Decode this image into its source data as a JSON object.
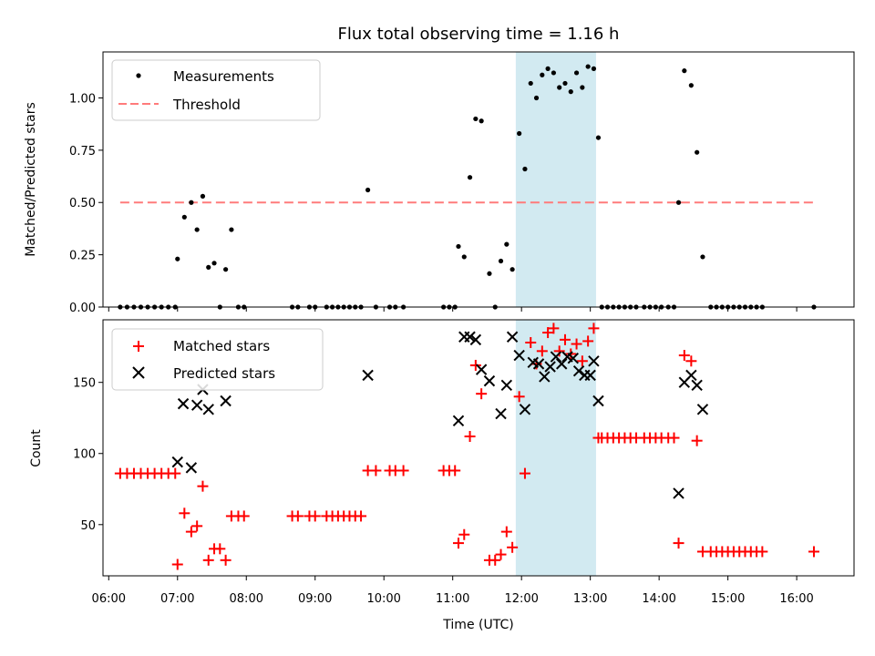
{
  "chart_data": {
    "title": "Flux total observing time = 1.16 h",
    "xlabel": "Time (UTC)",
    "x_ticks": [
      "06:00",
      "07:00",
      "08:00",
      "09:00",
      "10:00",
      "11:00",
      "12:00",
      "13:00",
      "14:00",
      "15:00",
      "16:00"
    ],
    "x_range": [
      "05:55",
      "16:50"
    ],
    "shaded_region": {
      "start": "11:55",
      "end": "13:05",
      "color": "#add8e6"
    },
    "top": {
      "type": "scatter",
      "ylabel": "Matched/Predicted stars",
      "ylim": [
        0,
        1.22
      ],
      "y_ticks": [
        "0.00",
        "0.25",
        "0.50",
        "0.75",
        "1.00"
      ],
      "legend": {
        "placement": "top-left",
        "measurements": "Measurements",
        "threshold": "Threshold"
      },
      "threshold": {
        "value": 0.5,
        "x_start": "06:10",
        "x_end": "16:15",
        "color": "#ff7b7b"
      },
      "measurements": [
        [
          "06:10",
          0
        ],
        [
          "06:16",
          0
        ],
        [
          "06:22",
          0
        ],
        [
          "06:28",
          0
        ],
        [
          "06:34",
          0
        ],
        [
          "06:40",
          0
        ],
        [
          "06:46",
          0
        ],
        [
          "06:52",
          0
        ],
        [
          "06:58",
          0
        ],
        [
          "07:00",
          0.23
        ],
        [
          "07:06",
          0.43
        ],
        [
          "07:12",
          0.5
        ],
        [
          "07:17",
          0.37
        ],
        [
          "07:22",
          0.53
        ],
        [
          "07:27",
          0.19
        ],
        [
          "07:32",
          0.21
        ],
        [
          "07:37",
          0
        ],
        [
          "07:42",
          0.18
        ],
        [
          "07:47",
          0.37
        ],
        [
          "07:53",
          0
        ],
        [
          "07:58",
          0
        ],
        [
          "08:40",
          0
        ],
        [
          "08:45",
          0
        ],
        [
          "08:55",
          0
        ],
        [
          "09:00",
          0
        ],
        [
          "09:10",
          0
        ],
        [
          "09:15",
          0
        ],
        [
          "09:20",
          0
        ],
        [
          "09:25",
          0
        ],
        [
          "09:30",
          0
        ],
        [
          "09:35",
          0
        ],
        [
          "09:40",
          0
        ],
        [
          "09:46",
          0.56
        ],
        [
          "09:53",
          0
        ],
        [
          "10:05",
          0
        ],
        [
          "10:10",
          0
        ],
        [
          "10:17",
          0
        ],
        [
          "10:52",
          0
        ],
        [
          "10:57",
          0
        ],
        [
          "11:02",
          0
        ],
        [
          "11:05",
          0.29
        ],
        [
          "11:10",
          0.24
        ],
        [
          "11:15",
          0.62
        ],
        [
          "11:20",
          0.9
        ],
        [
          "11:25",
          0.89
        ],
        [
          "11:32",
          0.16
        ],
        [
          "11:37",
          0
        ],
        [
          "11:42",
          0.22
        ],
        [
          "11:47",
          0.3
        ],
        [
          "11:52",
          0.18
        ],
        [
          "11:58",
          0.83
        ],
        [
          "12:03",
          0.66
        ],
        [
          "12:08",
          1.07
        ],
        [
          "12:13",
          1.0
        ],
        [
          "12:18",
          1.11
        ],
        [
          "12:23",
          1.14
        ],
        [
          "12:28",
          1.12
        ],
        [
          "12:33",
          1.05
        ],
        [
          "12:38",
          1.07
        ],
        [
          "12:43",
          1.03
        ],
        [
          "12:48",
          1.12
        ],
        [
          "12:53",
          1.05
        ],
        [
          "12:58",
          1.15
        ],
        [
          "13:03",
          1.14
        ],
        [
          "13:07",
          0.81
        ],
        [
          "13:10",
          0
        ],
        [
          "13:15",
          0
        ],
        [
          "13:20",
          0
        ],
        [
          "13:25",
          0
        ],
        [
          "13:30",
          0
        ],
        [
          "13:35",
          0
        ],
        [
          "13:40",
          0
        ],
        [
          "13:47",
          0
        ],
        [
          "13:52",
          0
        ],
        [
          "13:57",
          0
        ],
        [
          "14:02",
          0
        ],
        [
          "14:08",
          0
        ],
        [
          "14:13",
          0
        ],
        [
          "14:17",
          0.5
        ],
        [
          "14:22",
          1.13
        ],
        [
          "14:28",
          1.06
        ],
        [
          "14:33",
          0.74
        ],
        [
          "14:38",
          0.24
        ],
        [
          "14:45",
          0
        ],
        [
          "14:50",
          0
        ],
        [
          "14:55",
          0
        ],
        [
          "15:00",
          0
        ],
        [
          "15:05",
          0
        ],
        [
          "15:10",
          0
        ],
        [
          "15:15",
          0
        ],
        [
          "15:20",
          0
        ],
        [
          "15:25",
          0
        ],
        [
          "15:30",
          0
        ],
        [
          "16:15",
          0
        ]
      ]
    },
    "bottom": {
      "type": "scatter",
      "ylabel": "Count",
      "ylim": [
        14,
        194
      ],
      "y_ticks": [
        "50",
        "100",
        "150"
      ],
      "legend": {
        "placement": "top-left",
        "matched": "Matched stars",
        "predicted": "Predicted stars"
      },
      "matched": [
        [
          "06:10",
          86
        ],
        [
          "06:16",
          86
        ],
        [
          "06:22",
          86
        ],
        [
          "06:28",
          86
        ],
        [
          "06:34",
          86
        ],
        [
          "06:40",
          86
        ],
        [
          "06:46",
          86
        ],
        [
          "06:52",
          86
        ],
        [
          "06:58",
          86
        ],
        [
          "07:00",
          22
        ],
        [
          "07:06",
          58
        ],
        [
          "07:12",
          45
        ],
        [
          "07:17",
          49
        ],
        [
          "07:22",
          77
        ],
        [
          "07:27",
          25
        ],
        [
          "07:32",
          33
        ],
        [
          "07:37",
          33
        ],
        [
          "07:42",
          25
        ],
        [
          "07:47",
          56
        ],
        [
          "07:53",
          56
        ],
        [
          "07:58",
          56
        ],
        [
          "08:40",
          56
        ],
        [
          "08:45",
          56
        ],
        [
          "08:55",
          56
        ],
        [
          "09:00",
          56
        ],
        [
          "09:10",
          56
        ],
        [
          "09:15",
          56
        ],
        [
          "09:20",
          56
        ],
        [
          "09:25",
          56
        ],
        [
          "09:30",
          56
        ],
        [
          "09:35",
          56
        ],
        [
          "09:40",
          56
        ],
        [
          "09:46",
          88
        ],
        [
          "09:53",
          88
        ],
        [
          "10:05",
          88
        ],
        [
          "10:10",
          88
        ],
        [
          "10:17",
          88
        ],
        [
          "10:52",
          88
        ],
        [
          "10:57",
          88
        ],
        [
          "11:02",
          88
        ],
        [
          "11:05",
          37
        ],
        [
          "11:10",
          43
        ],
        [
          "11:15",
          112
        ],
        [
          "11:20",
          162
        ],
        [
          "11:25",
          142
        ],
        [
          "11:32",
          25
        ],
        [
          "11:37",
          25
        ],
        [
          "11:42",
          29
        ],
        [
          "11:47",
          45
        ],
        [
          "11:52",
          34
        ],
        [
          "11:58",
          140
        ],
        [
          "12:03",
          86
        ],
        [
          "12:08",
          178
        ],
        [
          "12:13",
          163
        ],
        [
          "12:18",
          172
        ],
        [
          "12:23",
          185
        ],
        [
          "12:28",
          188
        ],
        [
          "12:33",
          172
        ],
        [
          "12:38",
          180
        ],
        [
          "12:43",
          170
        ],
        [
          "12:48",
          177
        ],
        [
          "12:53",
          165
        ],
        [
          "12:58",
          179
        ],
        [
          "13:03",
          188
        ],
        [
          "13:07",
          111
        ],
        [
          "13:10",
          111
        ],
        [
          "13:15",
          111
        ],
        [
          "13:20",
          111
        ],
        [
          "13:25",
          111
        ],
        [
          "13:30",
          111
        ],
        [
          "13:35",
          111
        ],
        [
          "13:40",
          111
        ],
        [
          "13:47",
          111
        ],
        [
          "13:52",
          111
        ],
        [
          "13:57",
          111
        ],
        [
          "14:02",
          111
        ],
        [
          "14:08",
          111
        ],
        [
          "14:13",
          111
        ],
        [
          "14:17",
          37
        ],
        [
          "14:22",
          169
        ],
        [
          "14:28",
          165
        ],
        [
          "14:33",
          109
        ],
        [
          "14:38",
          31
        ],
        [
          "14:45",
          31
        ],
        [
          "14:50",
          31
        ],
        [
          "14:55",
          31
        ],
        [
          "15:00",
          31
        ],
        [
          "15:05",
          31
        ],
        [
          "15:10",
          31
        ],
        [
          "15:15",
          31
        ],
        [
          "15:20",
          31
        ],
        [
          "15:25",
          31
        ],
        [
          "15:30",
          31
        ],
        [
          "16:15",
          31
        ]
      ],
      "predicted": [
        [
          "07:00",
          94
        ],
        [
          "07:05",
          135
        ],
        [
          "07:12",
          90
        ],
        [
          "07:17",
          134
        ],
        [
          "07:22",
          145
        ],
        [
          "07:27",
          131
        ],
        [
          "07:42",
          137
        ],
        [
          "09:46",
          155
        ],
        [
          "11:05",
          123
        ],
        [
          "11:10",
          182
        ],
        [
          "11:15",
          182
        ],
        [
          "11:20",
          180
        ],
        [
          "11:25",
          159
        ],
        [
          "11:32",
          151
        ],
        [
          "11:42",
          128
        ],
        [
          "11:47",
          148
        ],
        [
          "11:52",
          182
        ],
        [
          "11:58",
          169
        ],
        [
          "12:03",
          131
        ],
        [
          "12:10",
          164
        ],
        [
          "12:15",
          163
        ],
        [
          "12:20",
          154
        ],
        [
          "12:25",
          161
        ],
        [
          "12:30",
          168
        ],
        [
          "12:35",
          163
        ],
        [
          "12:40",
          168
        ],
        [
          "12:45",
          167
        ],
        [
          "12:50",
          158
        ],
        [
          "12:55",
          155
        ],
        [
          "13:00",
          155
        ],
        [
          "13:03",
          165
        ],
        [
          "13:07",
          137
        ],
        [
          "14:17",
          72
        ],
        [
          "14:22",
          150
        ],
        [
          "14:28",
          155
        ],
        [
          "14:33",
          148
        ],
        [
          "14:38",
          131
        ]
      ]
    }
  }
}
